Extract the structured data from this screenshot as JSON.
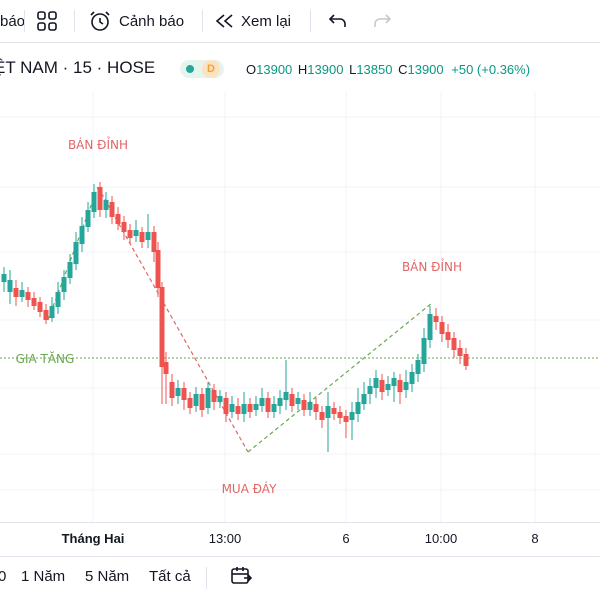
{
  "toolbar": {
    "cut_label": "báo",
    "alert_label": "Cảnh báo",
    "replay_label": "Xem lại"
  },
  "legend": {
    "symbol": "ỆT NAM · 15 · HOSE",
    "badge": "D",
    "o_key": "O",
    "o_val": "13900",
    "h_key": "H",
    "h_val": "13900",
    "l_key": "L",
    "l_val": "13850",
    "c_key": "C",
    "c_val": "13900",
    "change": "+50 (+0.36%)"
  },
  "annotations": {
    "top1": "BÁN ĐỈNH",
    "top2": "BÁN ĐỈNH",
    "bottom": "MUA ĐÁY",
    "grow": "GIA TĂNG"
  },
  "time_axis": {
    "t1": "Tháng Hai",
    "t2": "13:00",
    "t3": "6",
    "t4": "10:00",
    "t5": "8"
  },
  "ranges": {
    "r0": "0",
    "r1": "1 Năm",
    "r2": "5 Năm",
    "r3": "Tất cả"
  },
  "colors": {
    "up": "#26a69a",
    "down": "#ef5350",
    "annotation_red": "#e06666",
    "annotation_green": "#6aa84f"
  }
}
